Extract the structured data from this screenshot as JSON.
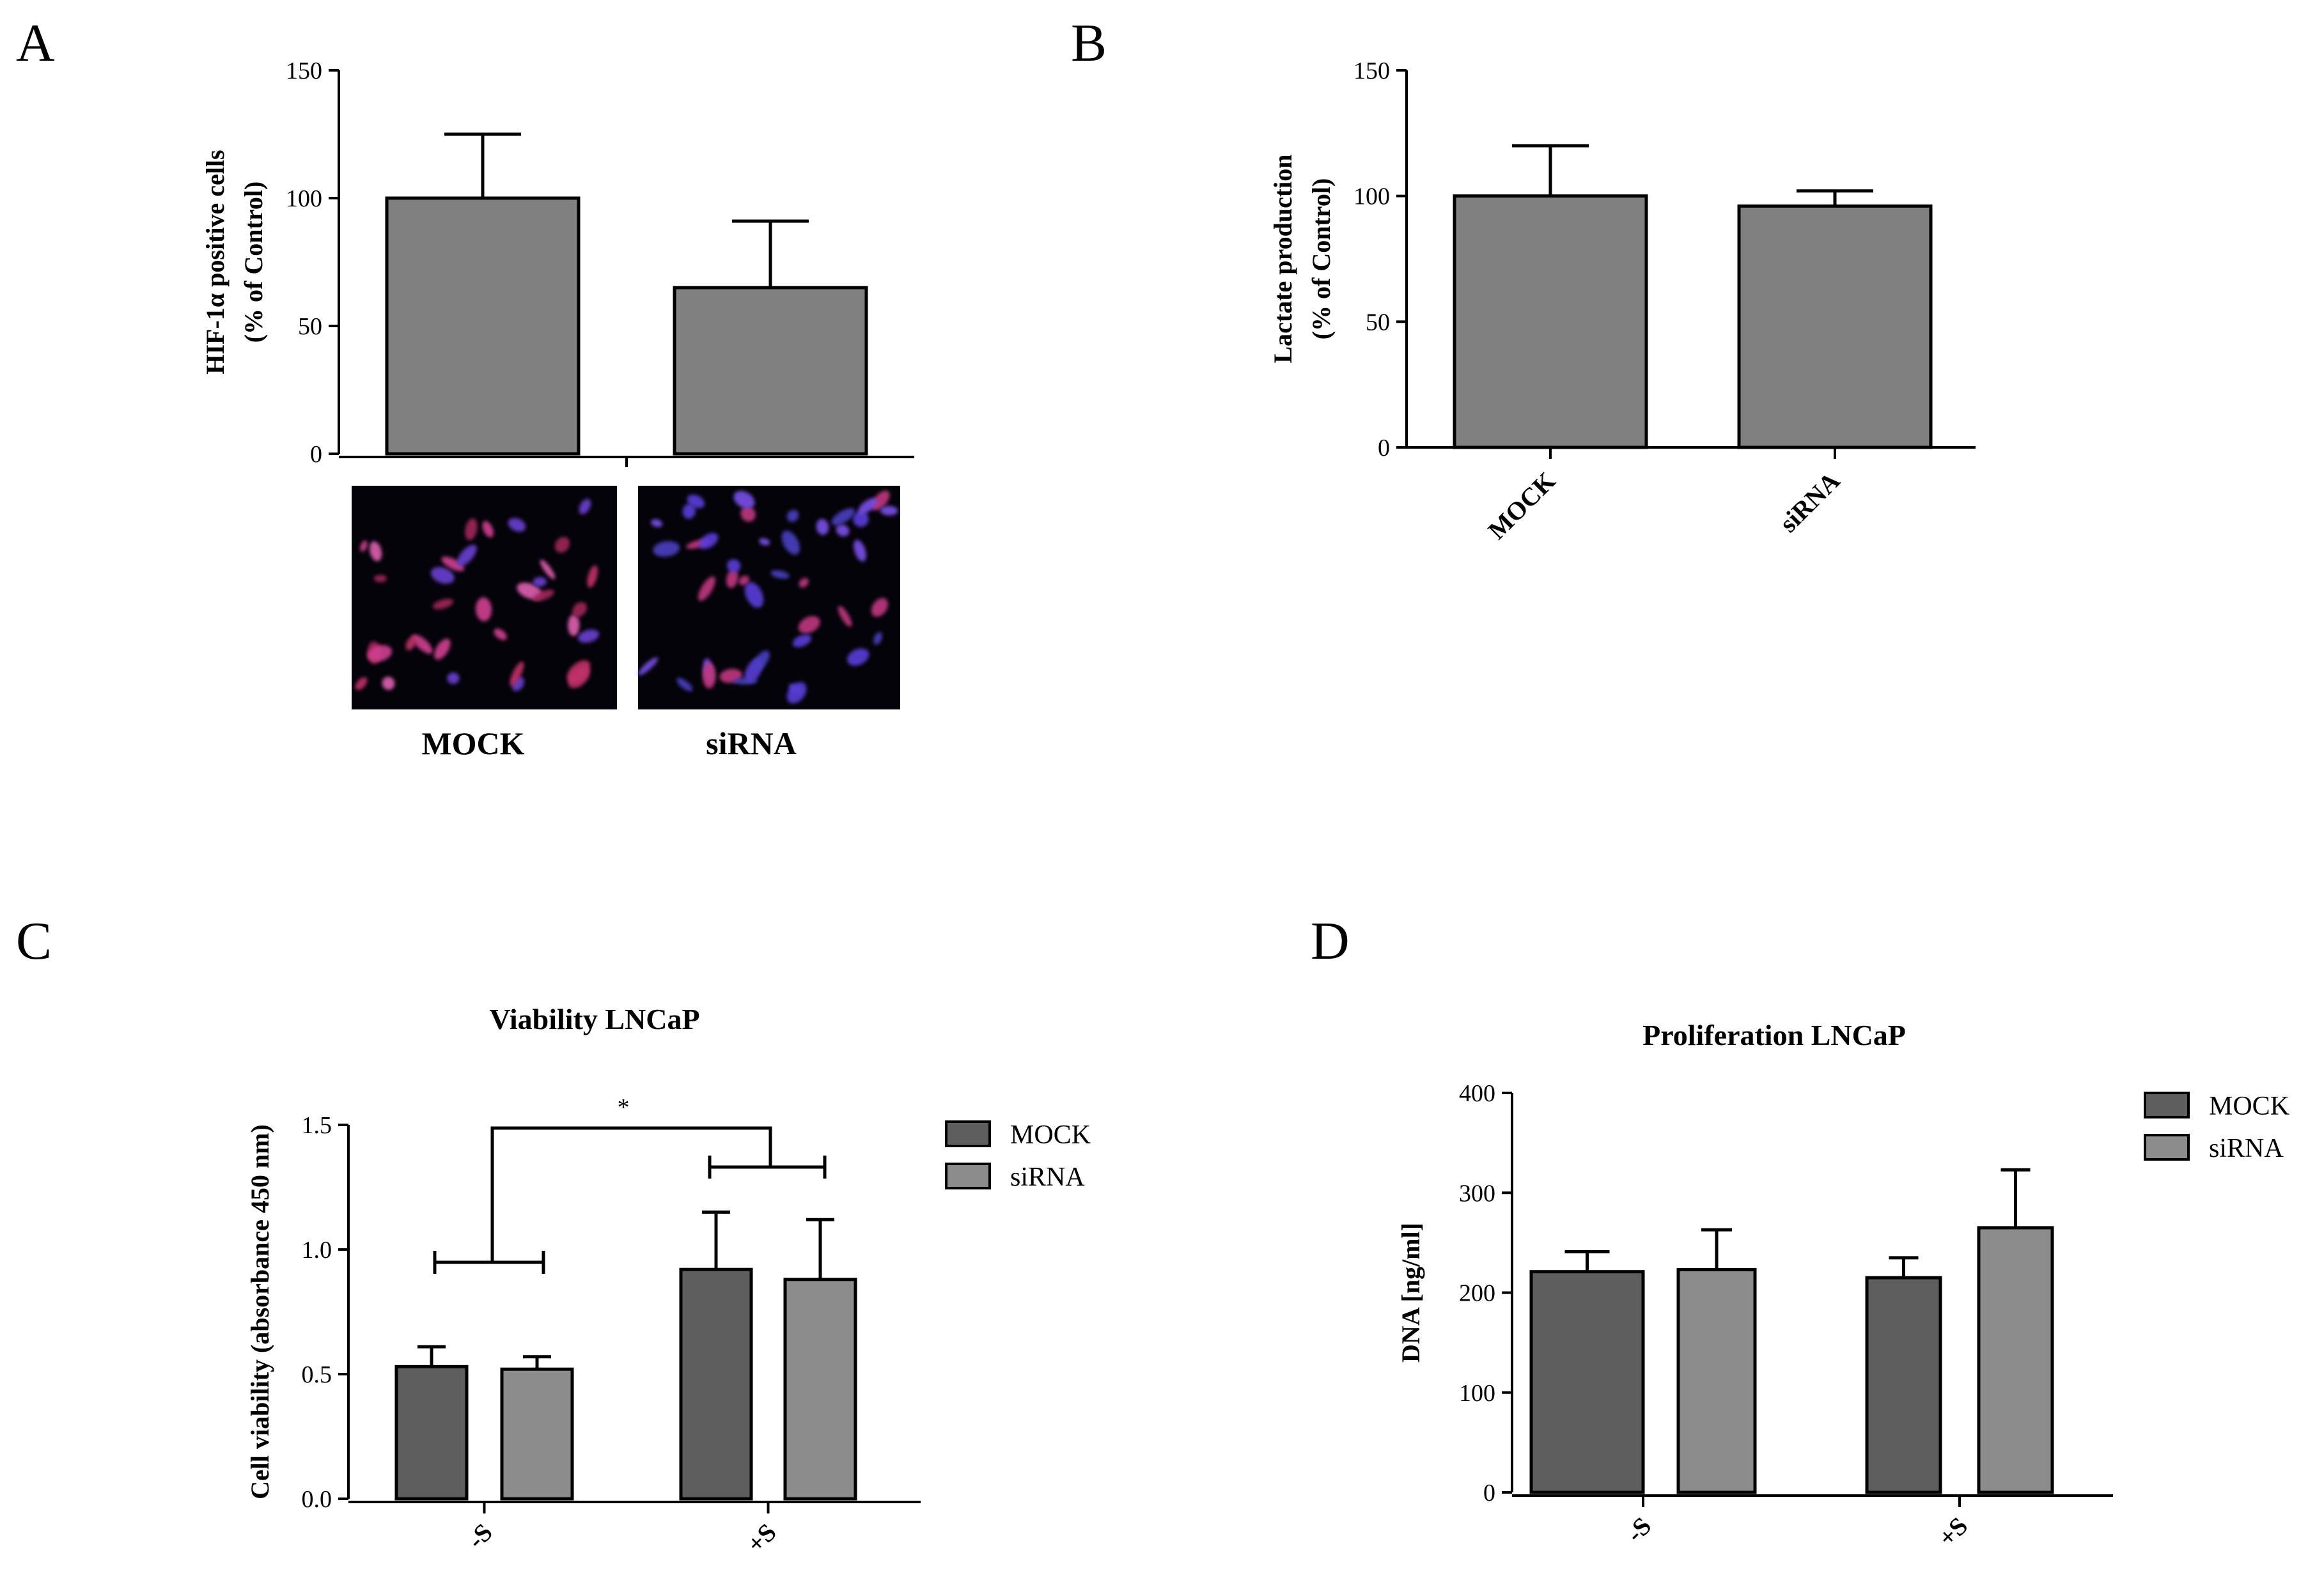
{
  "colors": {
    "bar_single": "#808080",
    "mock": "#5e5e5e",
    "sirna": "#8c8c8c",
    "axis": "#000000"
  },
  "chart_data": [
    {
      "id": "A",
      "type": "bar",
      "panel_label": "A",
      "title": "",
      "ylabel_line1": "HIF-1α positive cells",
      "ylabel_line2": "(% of Control)",
      "xlabel": "",
      "ylim": [
        0,
        150
      ],
      "yticks": [
        0,
        50,
        100,
        150
      ],
      "categories": [
        "MOCK",
        "siRNA"
      ],
      "values": [
        100,
        65
      ],
      "errors": [
        25,
        26
      ],
      "image_captions": [
        "MOCK",
        "siRNA"
      ]
    },
    {
      "id": "B",
      "type": "bar",
      "panel_label": "B",
      "title": "",
      "ylabel_line1": "Lactate production",
      "ylabel_line2": "(% of Control)",
      "xlabel": "",
      "ylim": [
        0,
        150
      ],
      "yticks": [
        0,
        50,
        100,
        150
      ],
      "categories": [
        "MOCK",
        "siRNA"
      ],
      "values": [
        100,
        96
      ],
      "errors": [
        20,
        6
      ]
    },
    {
      "id": "C",
      "type": "bar",
      "panel_label": "C",
      "title": "Viability LNCaP",
      "ylabel": "Cell viability (absorbance 450 nm)",
      "xlabel": "",
      "ylim": [
        0,
        1.5
      ],
      "yticks": [
        "0.0",
        "0.5",
        "1.0",
        "1.5"
      ],
      "categories": [
        "-S",
        "+S"
      ],
      "legend": [
        "MOCK",
        "siRNA"
      ],
      "legend_position": "right",
      "series": [
        {
          "name": "MOCK",
          "values": [
            0.53,
            0.92
          ],
          "errors": [
            0.08,
            0.23
          ]
        },
        {
          "name": "siRNA",
          "values": [
            0.52,
            0.88
          ],
          "errors": [
            0.05,
            0.24
          ]
        }
      ],
      "annotation": "*"
    },
    {
      "id": "D",
      "type": "bar",
      "panel_label": "D",
      "title": "Proliferation LNCaP",
      "ylabel": "DNA  [ng/ml]",
      "xlabel": "",
      "ylim": [
        0,
        400
      ],
      "yticks": [
        0,
        100,
        200,
        300,
        400
      ],
      "categories": [
        "-S",
        "+S"
      ],
      "legend": [
        "MOCK",
        "siRNA"
      ],
      "legend_position": "right",
      "series": [
        {
          "name": "MOCK",
          "values": [
            221,
            215
          ],
          "errors": [
            20,
            20
          ]
        },
        {
          "name": "siRNA",
          "values": [
            223,
            265
          ],
          "errors": [
            40,
            58
          ]
        }
      ]
    }
  ]
}
